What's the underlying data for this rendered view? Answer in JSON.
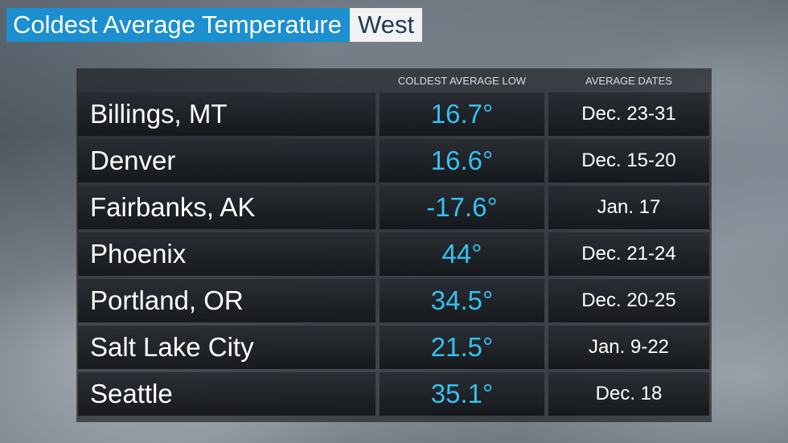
{
  "header": {
    "title": "Coldest Average Temperature",
    "region": "West"
  },
  "table": {
    "columns": [
      "COLDEST AVERAGE LOW",
      "AVERAGE DATES"
    ],
    "rows": [
      [
        "Billings, MT",
        "16.7°",
        "Dec. 23-31"
      ],
      [
        "Denver",
        "16.6°",
        "Dec. 15-20"
      ],
      [
        "Fairbanks, AK",
        "-17.6°",
        "Jan. 17"
      ],
      [
        "Phoenix",
        "44°",
        "Dec. 21-24"
      ],
      [
        "Portland, OR",
        "34.5°",
        "Dec. 20-25"
      ],
      [
        "Salt Lake City",
        "21.5°",
        "Jan. 9-22"
      ],
      [
        "Seattle",
        "35.1°",
        "Dec. 18"
      ]
    ]
  }
}
